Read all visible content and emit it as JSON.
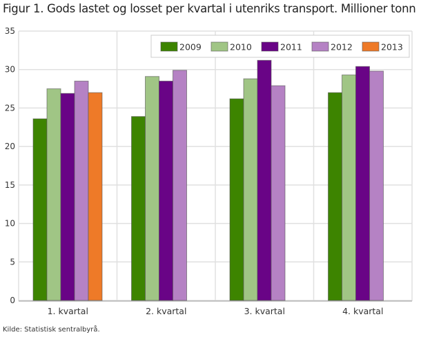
{
  "chart_data": {
    "type": "bar",
    "title": "Figur 1. Gods lastet og losset per kvartal i utenriks transport. Millioner tonn",
    "categories": [
      "1. kvartal",
      "2. kvartal",
      "3. kvartal",
      "4. kvartal"
    ],
    "series": [
      {
        "name": "2009",
        "color": "#3d8400",
        "values": [
          23.6,
          23.9,
          26.2,
          27.0
        ]
      },
      {
        "name": "2010",
        "color": "#a0c585",
        "values": [
          27.5,
          29.1,
          28.8,
          29.3
        ]
      },
      {
        "name": "2011",
        "color": "#690486",
        "values": [
          26.9,
          28.5,
          31.2,
          30.4
        ]
      },
      {
        "name": "2012",
        "color": "#b582c4",
        "values": [
          28.5,
          29.9,
          27.9,
          29.8
        ]
      },
      {
        "name": "2013",
        "color": "#ee7a28",
        "values": [
          27.0,
          null,
          null,
          null
        ]
      }
    ],
    "ylim": [
      0,
      35
    ],
    "yticks": [
      0,
      5,
      10,
      15,
      20,
      25,
      30,
      35
    ],
    "grid": true,
    "legend": "top-right",
    "source": "Kilde: Statistisk sentralbyrå."
  }
}
